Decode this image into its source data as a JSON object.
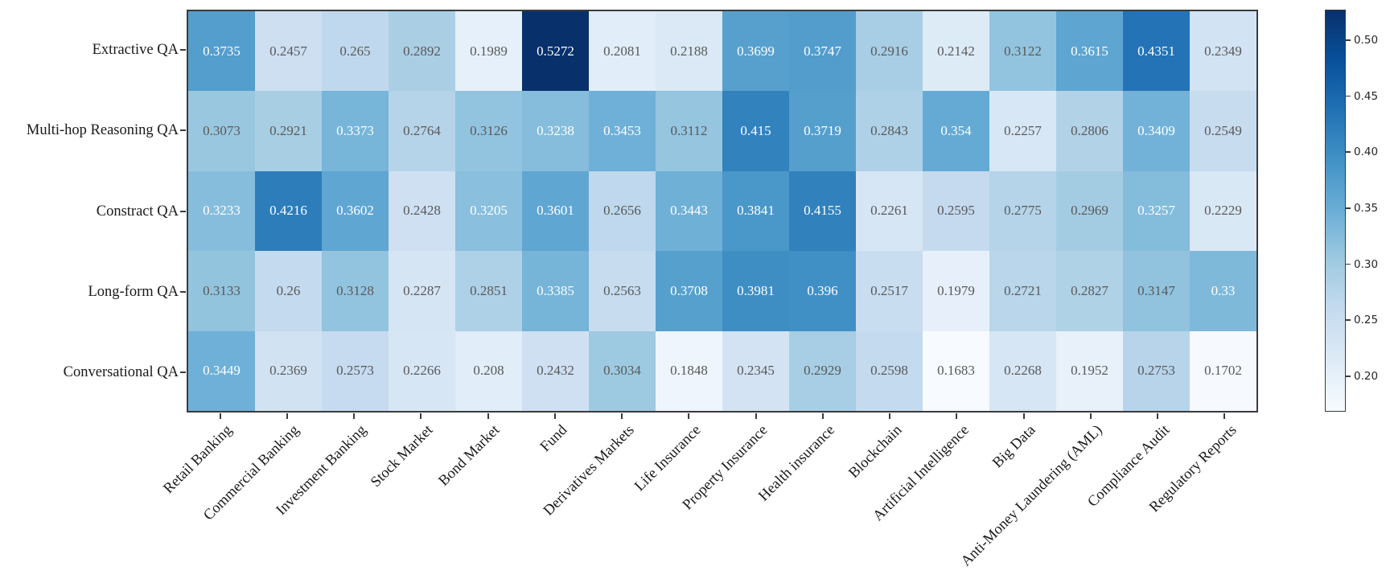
{
  "chart_data": {
    "type": "heatmap",
    "title": "",
    "xlabel": "",
    "ylabel": "",
    "rows": [
      "Extractive QA",
      "Multi-hop Reasoning QA",
      "Constract QA",
      "Long-form QA",
      "Conversational QA"
    ],
    "columns": [
      "Retail Banking",
      "Commercial Banking",
      "Investment Banking",
      "Stock Market",
      "Bond Market",
      "Fund",
      "Derivatives Markets",
      "Life Insurance",
      "Property Insurance",
      "Health insurance",
      "Blockchain",
      "Artificial Intelligence",
      "Big Data",
      "Anti-Money Laundering (AML)",
      "Compliance Audit",
      "Regulatory Reports"
    ],
    "values": [
      [
        0.3735,
        0.2457,
        0.265,
        0.2892,
        0.1989,
        0.5272,
        0.2081,
        0.2188,
        0.3699,
        0.3747,
        0.2916,
        0.2142,
        0.3122,
        0.3615,
        0.4351,
        0.2349
      ],
      [
        0.3073,
        0.2921,
        0.3373,
        0.2764,
        0.3126,
        0.3238,
        0.3453,
        0.3112,
        0.415,
        0.3719,
        0.2843,
        0.354,
        0.2257,
        0.2806,
        0.3409,
        0.2549
      ],
      [
        0.3233,
        0.4216,
        0.3602,
        0.2428,
        0.3205,
        0.3601,
        0.2656,
        0.3443,
        0.3841,
        0.4155,
        0.2261,
        0.2595,
        0.2775,
        0.2969,
        0.3257,
        0.2229
      ],
      [
        0.3133,
        0.26,
        0.3128,
        0.2287,
        0.2851,
        0.3385,
        0.2563,
        0.3708,
        0.3981,
        0.396,
        0.2517,
        0.1979,
        0.2721,
        0.2827,
        0.3147,
        0.33
      ],
      [
        0.3449,
        0.2369,
        0.2573,
        0.2266,
        0.208,
        0.2432,
        0.3034,
        0.1848,
        0.2345,
        0.2929,
        0.2598,
        0.1683,
        0.2268,
        0.1952,
        0.2753,
        0.1702
      ]
    ],
    "annotations": true,
    "colormap": "Blues",
    "colormap_anchor_colors": [
      "#f7fbff",
      "#deebf7",
      "#c6dbef",
      "#9ecae1",
      "#6baed6",
      "#4292c6",
      "#2171b5",
      "#08519c",
      "#08306b"
    ],
    "vmin": 0.1683,
    "vmax": 0.5272,
    "grid": false,
    "legend_position": "right-colorbar",
    "colorbar": {
      "tick_values": [
        0.5,
        0.45,
        0.4,
        0.35,
        0.3,
        0.25,
        0.2
      ],
      "tick_labels": [
        "0.50",
        "0.45",
        "0.40",
        "0.35",
        "0.30",
        "0.25",
        "0.20"
      ]
    },
    "annotation_text_colors": {
      "light_cells": "#595959",
      "dark_cells": "#ffffff"
    }
  }
}
